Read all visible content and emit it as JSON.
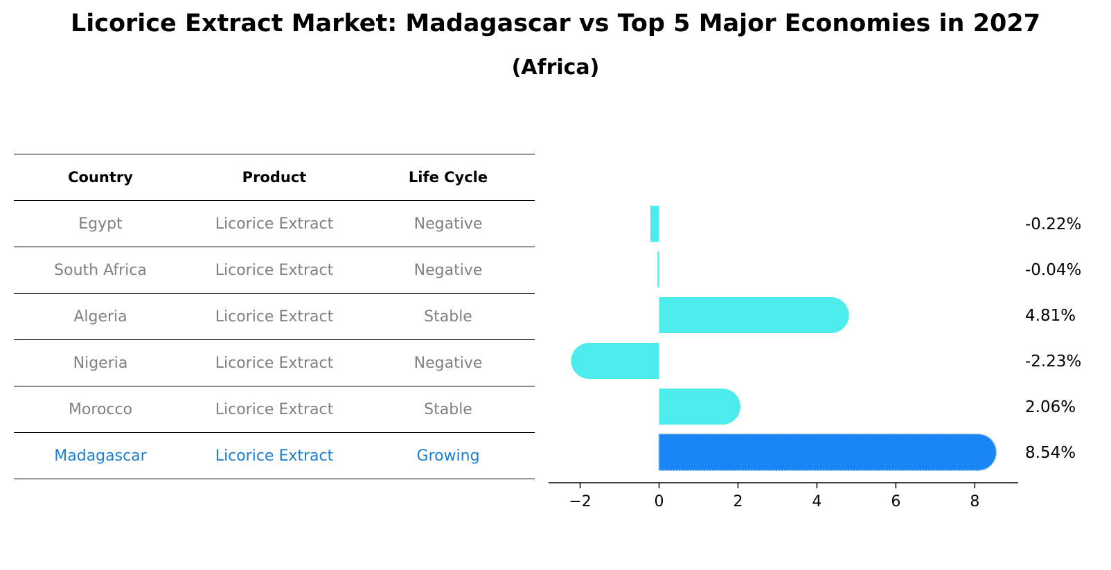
{
  "title": "Licorice Extract Market: Madagascar vs Top 5 Major Economies in 2027",
  "subtitle": "(Africa)",
  "table": {
    "headers": [
      "Country",
      "Product",
      "Life Cycle"
    ],
    "rows": [
      [
        "Egypt",
        "Licorice Extract",
        "Negative"
      ],
      [
        "South Africa",
        "Licorice Extract",
        "Negative"
      ],
      [
        "Algeria",
        "Licorice Extract",
        "Stable"
      ],
      [
        "Nigeria",
        "Licorice Extract",
        "Negative"
      ],
      [
        "Morocco",
        "Licorice Extract",
        "Stable"
      ],
      [
        "Madagascar",
        "Licorice Extract",
        "Growing"
      ]
    ],
    "highlight_row": 5
  },
  "chart_data": {
    "type": "bar",
    "orientation": "horizontal",
    "categories": [
      "Egypt",
      "South Africa",
      "Algeria",
      "Nigeria",
      "Morocco",
      "Madagascar"
    ],
    "values": [
      -0.22,
      -0.04,
      4.81,
      -2.23,
      2.06,
      8.54
    ],
    "value_labels": [
      "-0.22%",
      "-0.04%",
      "4.81%",
      "-2.23%",
      "2.06%",
      "8.54%"
    ],
    "xlim": [
      -2.8,
      9.1
    ],
    "xticks": [
      -2,
      0,
      2,
      4,
      6,
      8
    ],
    "xtick_labels": [
      "−2",
      "0",
      "2",
      "4",
      "6",
      "8"
    ],
    "grid": false,
    "colors": {
      "default": "#4beceb",
      "highlight": "#1a86f5"
    },
    "highlight_index": 5
  }
}
